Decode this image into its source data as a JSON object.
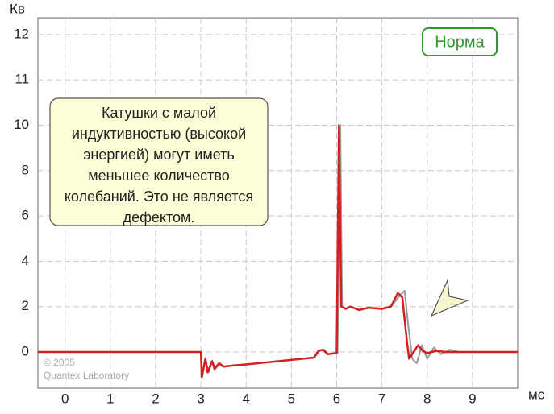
{
  "chart_data": {
    "type": "line",
    "x_label": "мс",
    "y_label": "Кв",
    "xlim": [
      -0.6,
      10
    ],
    "xticks": [
      0,
      1,
      2,
      3,
      4,
      5,
      6,
      7,
      8,
      9
    ],
    "ylim": [
      -1.6,
      12.37
    ],
    "yticks": [
      0,
      2,
      4,
      6,
      8,
      10,
      11,
      12
    ],
    "grid": true,
    "badge": "Норма",
    "callout": [
      "Катушки с малой",
      "индуктивностью (высокой",
      "энергией) могут иметь",
      "меньшее количество",
      "колебаний. Это не является",
      "дефектом."
    ],
    "copyright": [
      "© 2005",
      "Quantex Laboratory"
    ],
    "series": [
      {
        "color": "#999999",
        "x": [
          -0.6,
          3.0,
          3.03,
          3.1,
          3.17,
          3.25,
          3.32,
          3.42,
          3.52,
          3.7,
          4.0,
          5.0,
          5.5,
          5.62,
          5.72,
          5.82,
          6.02,
          6.08,
          6.12,
          6.2,
          6.3,
          6.5,
          6.7,
          7.0,
          7.2,
          7.4,
          7.5,
          7.58,
          7.67,
          7.77,
          7.88,
          8.0,
          8.15,
          8.3,
          8.5,
          8.7,
          10
        ],
        "values": [
          0,
          0,
          -1.1,
          -0.3,
          -0.9,
          -0.4,
          -0.75,
          -0.5,
          -0.65,
          -0.6,
          -0.55,
          -0.35,
          -0.25,
          0.05,
          0.1,
          -0.1,
          -0.05,
          10,
          2.0,
          1.9,
          2.0,
          1.85,
          1.95,
          1.9,
          2.0,
          2.5,
          2.7,
          1.2,
          -0.3,
          -0.5,
          0.3,
          -0.3,
          0.2,
          -0.1,
          0.1,
          0,
          0
        ]
      },
      {
        "color": "#d42020",
        "x": [
          -0.6,
          3.0,
          3.02,
          3.1,
          3.15,
          3.25,
          3.3,
          3.4,
          3.5,
          3.7,
          4.0,
          5.0,
          5.5,
          5.6,
          5.7,
          5.8,
          6.0,
          6.05,
          6.1,
          6.2,
          6.3,
          6.5,
          6.7,
          7.0,
          7.2,
          7.35,
          7.45,
          7.55,
          7.6,
          7.7,
          7.8,
          7.9,
          8.0,
          8.2,
          8.4,
          10
        ],
        "values": [
          0,
          0,
          -1.1,
          -0.3,
          -0.9,
          -0.4,
          -0.75,
          -0.5,
          -0.65,
          -0.6,
          -0.55,
          -0.35,
          -0.25,
          0.05,
          0.1,
          -0.1,
          -0.05,
          10,
          2.0,
          1.9,
          2.0,
          1.85,
          1.95,
          1.9,
          2.0,
          2.6,
          2.4,
          0.5,
          -0.3,
          0.0,
          0.3,
          0.05,
          -0.05,
          0.05,
          0,
          0
        ]
      }
    ]
  }
}
